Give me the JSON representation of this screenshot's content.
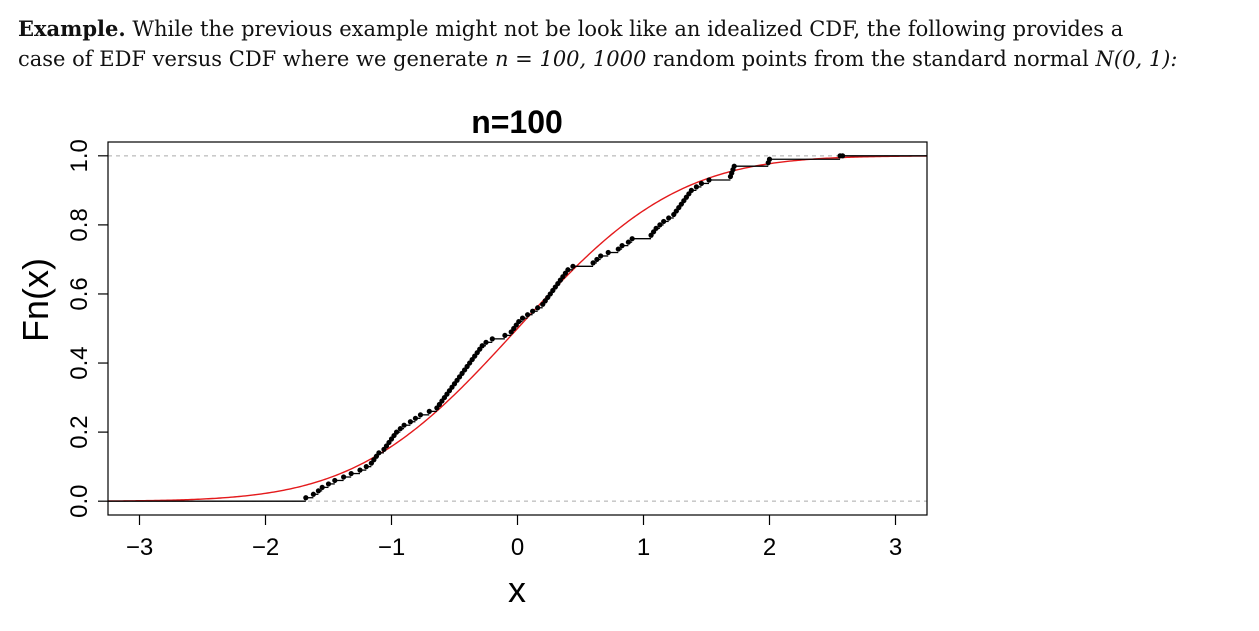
{
  "text": {
    "lead": "Example.",
    "line1_rest": "While the previous example might not be look like an idealized CDF, the following provides a",
    "line2_pre": "case of EDF versus CDF where we generate",
    "math_n": "n = 100, 1000",
    "line2_mid": "random points from the standard normal",
    "math_dist": "N(0, 1):"
  },
  "chart_data": {
    "type": "line",
    "title": "n=100",
    "xlabel": "x",
    "ylabel": "Fn(x)",
    "xlim": [
      -3.25,
      3.25
    ],
    "ylim": [
      -0.04,
      1.04
    ],
    "xticks": [
      -3,
      -2,
      -1,
      0,
      1,
      2,
      3
    ],
    "xtick_labels": [
      "−3",
      "−2",
      "−1",
      "0",
      "1",
      "2",
      "3"
    ],
    "yticks": [
      0,
      0.2,
      0.4,
      0.6,
      0.8,
      1.0
    ],
    "ytick_labels": [
      "0.0",
      "0.2",
      "0.4",
      "0.6",
      "0.8",
      "1.0"
    ],
    "reference_lines": [
      0,
      1
    ],
    "series": [
      {
        "kind": "step",
        "color": "#000000",
        "x": [
          -1.68,
          -1.62,
          -1.58,
          -1.55,
          -1.5,
          -1.45,
          -1.38,
          -1.32,
          -1.25,
          -1.2,
          -1.16,
          -1.14,
          -1.12,
          -1.1,
          -1.06,
          -1.04,
          -1.02,
          -1.0,
          -0.98,
          -0.96,
          -0.93,
          -0.9,
          -0.85,
          -0.81,
          -0.77,
          -0.7,
          -0.64,
          -0.62,
          -0.6,
          -0.58,
          -0.56,
          -0.54,
          -0.52,
          -0.5,
          -0.48,
          -0.46,
          -0.44,
          -0.42,
          -0.4,
          -0.38,
          -0.36,
          -0.34,
          -0.32,
          -0.3,
          -0.28,
          -0.25,
          -0.2,
          -0.1,
          -0.05,
          -0.03,
          -0.01,
          0.01,
          0.04,
          0.08,
          0.12,
          0.16,
          0.2,
          0.22,
          0.24,
          0.26,
          0.28,
          0.3,
          0.32,
          0.34,
          0.36,
          0.38,
          0.4,
          0.44,
          0.6,
          0.63,
          0.66,
          0.72,
          0.8,
          0.83,
          0.88,
          0.91,
          1.06,
          1.08,
          1.1,
          1.13,
          1.16,
          1.2,
          1.24,
          1.26,
          1.28,
          1.3,
          1.32,
          1.34,
          1.36,
          1.38,
          1.42,
          1.46,
          1.52,
          1.69,
          1.7,
          1.71,
          1.72,
          1.99,
          2.0,
          2.56,
          2.58
        ],
        "y": [
          0.01,
          0.02,
          0.03,
          0.04,
          0.05,
          0.06,
          0.07,
          0.08,
          0.09,
          0.1,
          0.11,
          0.12,
          0.13,
          0.14,
          0.15,
          0.16,
          0.17,
          0.18,
          0.19,
          0.2,
          0.21,
          0.22,
          0.23,
          0.24,
          0.25,
          0.26,
          0.27,
          0.28,
          0.29,
          0.3,
          0.31,
          0.32,
          0.33,
          0.34,
          0.35,
          0.36,
          0.37,
          0.38,
          0.39,
          0.4,
          0.41,
          0.42,
          0.43,
          0.44,
          0.45,
          0.46,
          0.47,
          0.48,
          0.49,
          0.5,
          0.51,
          0.52,
          0.53,
          0.54,
          0.55,
          0.56,
          0.57,
          0.58,
          0.59,
          0.6,
          0.61,
          0.62,
          0.63,
          0.64,
          0.65,
          0.66,
          0.67,
          0.68,
          0.69,
          0.7,
          0.71,
          0.72,
          0.73,
          0.74,
          0.75,
          0.76,
          0.77,
          0.78,
          0.79,
          0.8,
          0.81,
          0.82,
          0.83,
          0.84,
          0.85,
          0.86,
          0.87,
          0.88,
          0.89,
          0.9,
          0.91,
          0.92,
          0.93,
          0.94,
          0.95,
          0.96,
          0.97,
          0.98,
          0.99,
          1.0,
          1.0
        ]
      },
      {
        "kind": "normal_cdf",
        "color": "#e41a1c",
        "mean": 0,
        "sd": 1
      }
    ]
  }
}
